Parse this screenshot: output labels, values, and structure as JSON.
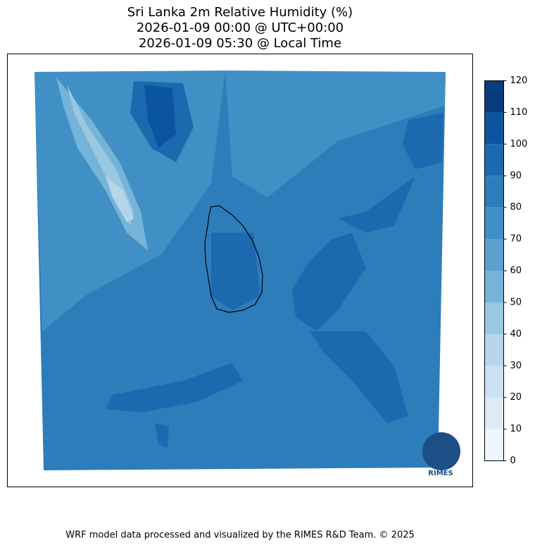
{
  "title": [
    "Sri Lanka 2m Relative Humidity (%)",
    "2026-01-09 00:00 @ UTC+00:00",
    "2026-01-09 05:30 @ Local Time"
  ],
  "colorbar": {
    "lim": [
      0,
      120
    ],
    "ticks": [
      0,
      10,
      20,
      30,
      40,
      50,
      60,
      70,
      80,
      90,
      100,
      110,
      120
    ],
    "colors": [
      "#f0f6fd",
      "#deebf7",
      "#cde0f1",
      "#b7d4ea",
      "#9ac8e0",
      "#76b3d8",
      "#5aa1cf",
      "#4090c5",
      "#2d7dbb",
      "#1c69b0",
      "#0b55a0",
      "#083c7d"
    ]
  },
  "logo": "RIMES",
  "footer": "WRF model data processed and visualized by the RIMES R&D Team. © 2025"
}
